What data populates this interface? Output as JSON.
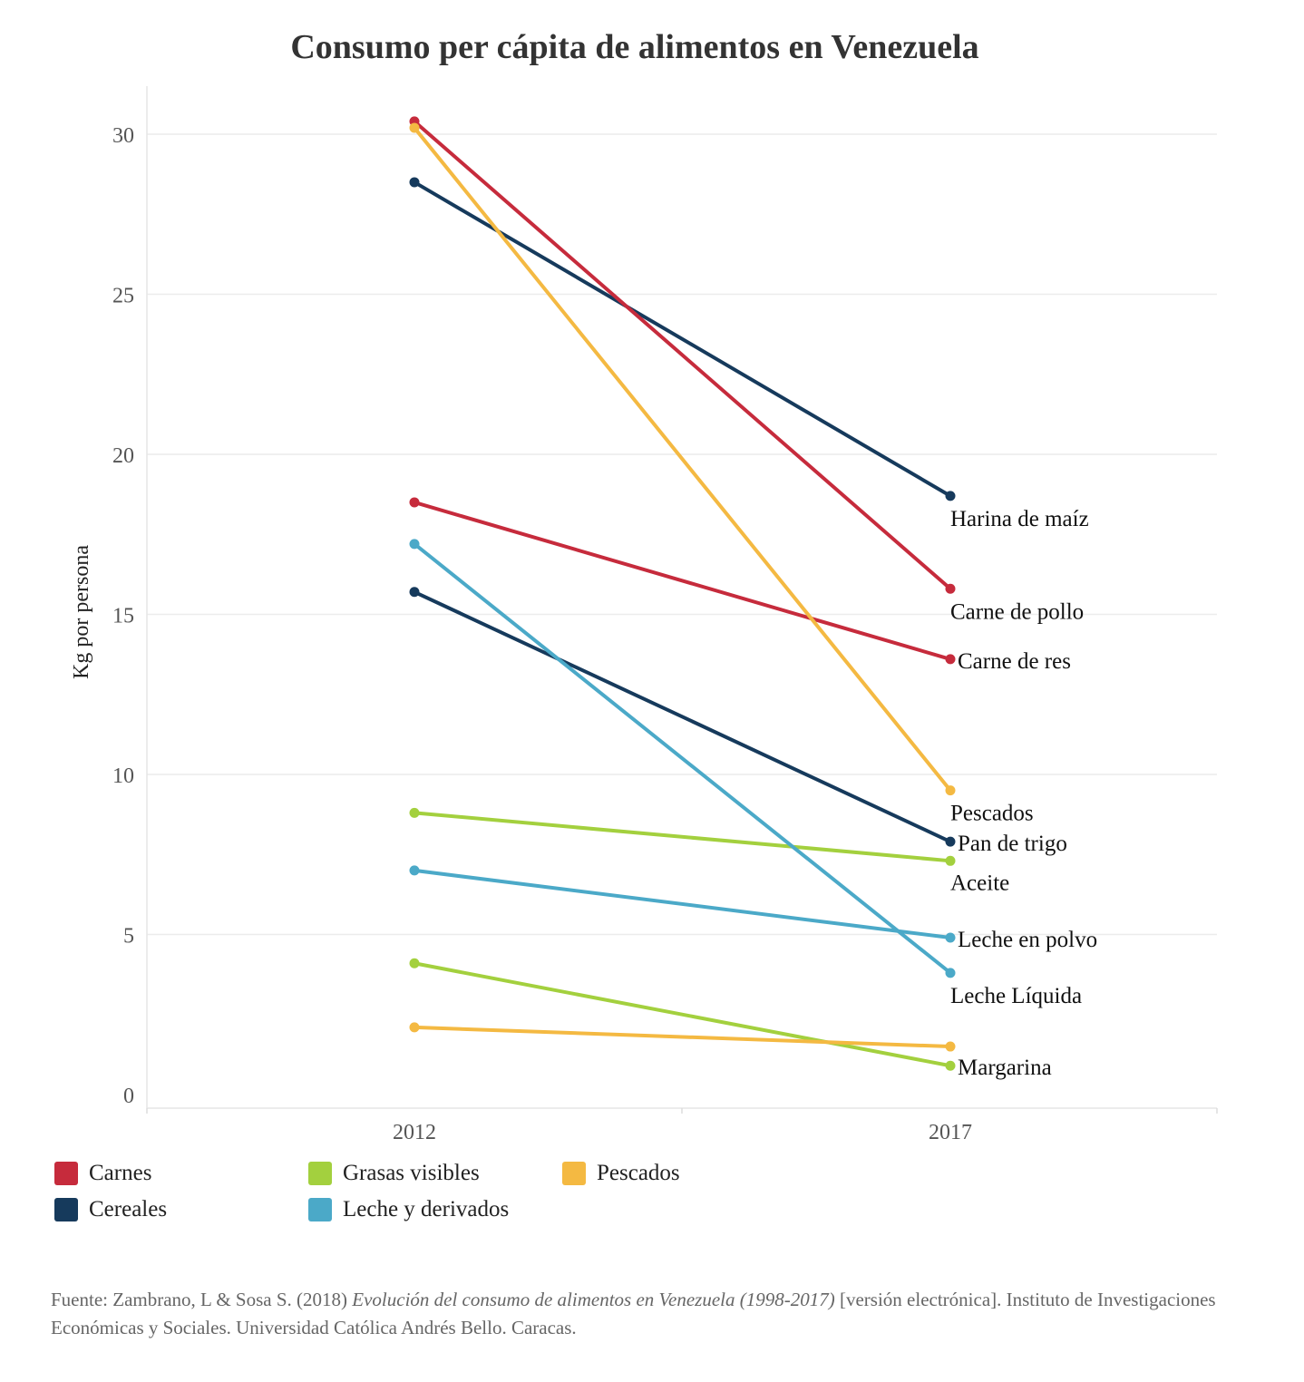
{
  "title": "Consumo per cápita de alimentos en Venezuela",
  "colors": {
    "Carnes": "#c62b3c",
    "Cereales": "#163a5c",
    "Grasas visibles": "#a3d03e",
    "Leche y derivados": "#4ba9c8",
    "Pescados": "#f4b942"
  },
  "legend": [
    {
      "name": "Carnes",
      "color": "#c62b3c"
    },
    {
      "name": "Cereales",
      "color": "#163a5c"
    },
    {
      "name": "Grasas visibles",
      "color": "#a3d03e"
    },
    {
      "name": "Leche y derivados",
      "color": "#4ba9c8"
    },
    {
      "name": "Pescados",
      "color": "#f4b942"
    }
  ],
  "source": {
    "prefix": "Fuente: Zambrano, L & Sosa S. (2018) ",
    "italic": "Evolución del consumo de alimentos en Venezuela (1998-2017)",
    "suffix": " [versión electrónica]. Instituto de Investigaciones Económicas y Sociales. Universidad Católica Andrés Bello. Caracas."
  },
  "chart_data": {
    "type": "line",
    "title": "Consumo per cápita de alimentos en Venezuela",
    "xlabel": "",
    "ylabel": "Kg por persona",
    "x": [
      "2012",
      "2017"
    ],
    "ylim": [
      0,
      32
    ],
    "yticks": [
      0,
      5,
      10,
      15,
      20,
      25,
      30
    ],
    "grid": true,
    "legend_position": "bottom-left",
    "series": [
      {
        "name": "Harina de maíz",
        "group": "Cereales",
        "values": [
          28.5,
          18.7
        ]
      },
      {
        "name": "Carne de pollo",
        "group": "Carnes",
        "values": [
          30.4,
          15.8
        ]
      },
      {
        "name": "Carne de res",
        "group": "Carnes",
        "values": [
          18.5,
          13.6
        ]
      },
      {
        "name": "Pescados",
        "group": "Pescados",
        "values": [
          30.2,
          9.5
        ]
      },
      {
        "name": "Pan de trigo",
        "group": "Cereales",
        "values": [
          15.7,
          7.9
        ]
      },
      {
        "name": "Aceite",
        "group": "Grasas visibles",
        "values": [
          8.8,
          7.3
        ]
      },
      {
        "name": "Leche en polvo",
        "group": "Leche y derivados",
        "values": [
          7.0,
          4.9
        ]
      },
      {
        "name": "Leche Líquida",
        "group": "Leche y derivados",
        "values": [
          17.2,
          3.8
        ]
      },
      {
        "name": "Margarina",
        "group": "Grasas visibles",
        "values": [
          4.1,
          0.9
        ]
      },
      {
        "name": "",
        "group": "Pescados",
        "values": [
          2.1,
          1.5
        ]
      }
    ]
  }
}
